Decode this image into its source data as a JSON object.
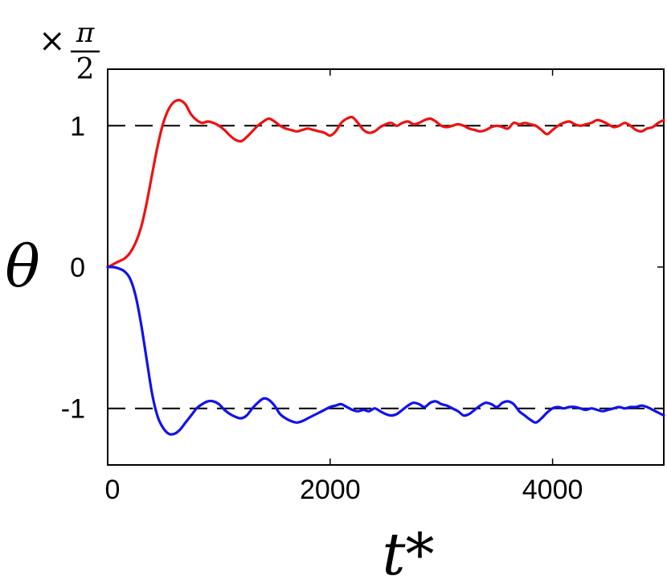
{
  "chart_data": {
    "type": "line",
    "title": "",
    "xlabel": "t*",
    "ylabel": "θ",
    "y_scale_factor": {
      "times": "×",
      "numerator": "π",
      "denominator": "2"
    },
    "xlim": [
      0,
      5000
    ],
    "ylim": [
      -1.4,
      1.4
    ],
    "xticks": [
      {
        "value": 0,
        "label": "0"
      },
      {
        "value": 2000,
        "label": "2000"
      },
      {
        "value": 4000,
        "label": "4000"
      }
    ],
    "yticks": [
      {
        "value": -1,
        "label": "-1"
      },
      {
        "value": 0,
        "label": "0"
      },
      {
        "value": 1,
        "label": "1"
      }
    ],
    "grid": false,
    "reference_lines": [
      {
        "y": 1,
        "style": "dashed",
        "color": "#000000"
      },
      {
        "y": -1,
        "style": "dashed",
        "color": "#000000"
      }
    ],
    "series": [
      {
        "color": "#ee1111",
        "x": [
          0,
          50,
          100,
          150,
          200,
          250,
          300,
          350,
          400,
          450,
          500,
          550,
          600,
          650,
          700,
          750,
          800,
          850,
          900,
          950,
          1000,
          1050,
          1100,
          1150,
          1200,
          1250,
          1300,
          1350,
          1400,
          1450,
          1500,
          1550,
          1600,
          1650,
          1700,
          1750,
          1800,
          1850,
          1900,
          1950,
          2000,
          2050,
          2100,
          2150,
          2200,
          2250,
          2300,
          2350,
          2400,
          2450,
          2500,
          2550,
          2600,
          2650,
          2700,
          2750,
          2800,
          2850,
          2900,
          2950,
          3000,
          3050,
          3100,
          3150,
          3200,
          3250,
          3300,
          3350,
          3400,
          3450,
          3500,
          3550,
          3600,
          3650,
          3700,
          3750,
          3800,
          3850,
          3900,
          3950,
          4000,
          4050,
          4100,
          4150,
          4200,
          4250,
          4300,
          4350,
          4400,
          4450,
          4500,
          4550,
          4600,
          4650,
          4700,
          4750,
          4800,
          4850,
          4900,
          4950,
          5000
        ],
        "y": [
          0,
          0.02,
          0.04,
          0.06,
          0.1,
          0.17,
          0.28,
          0.45,
          0.66,
          0.86,
          1.02,
          1.12,
          1.17,
          1.18,
          1.15,
          1.08,
          1.04,
          1.02,
          1.03,
          1.02,
          1.0,
          0.97,
          0.93,
          0.9,
          0.89,
          0.92,
          0.96,
          1.0,
          1.03,
          1.05,
          1.03,
          1.0,
          0.98,
          0.97,
          0.96,
          0.97,
          0.98,
          0.97,
          0.96,
          0.95,
          0.93,
          0.96,
          1.02,
          1.05,
          1.06,
          1.02,
          0.97,
          0.95,
          0.96,
          0.99,
          1.01,
          1.02,
          1.0,
          1.02,
          1.03,
          1.01,
          1.02,
          1.04,
          1.05,
          1.03,
          1.0,
          0.99,
          1.0,
          1.01,
          1.0,
          0.98,
          0.97,
          0.96,
          0.97,
          0.99,
          1.0,
          0.99,
          0.98,
          1.02,
          1.01,
          1.02,
          1.01,
          1.0,
          0.97,
          0.94,
          0.97,
          1.0,
          1.02,
          1.03,
          1.01,
          1.0,
          1.01,
          1.02,
          1.04,
          1.03,
          1.01,
          0.99,
          1.0,
          1.02,
          1.0,
          0.97,
          0.96,
          0.98,
          0.99,
          1.02,
          1.04
        ]
      },
      {
        "color": "#1111ee",
        "x": [
          0,
          50,
          100,
          150,
          200,
          250,
          300,
          350,
          400,
          450,
          500,
          550,
          600,
          650,
          700,
          750,
          800,
          850,
          900,
          950,
          1000,
          1050,
          1100,
          1150,
          1200,
          1250,
          1300,
          1350,
          1400,
          1450,
          1500,
          1550,
          1600,
          1650,
          1700,
          1750,
          1800,
          1850,
          1900,
          1950,
          2000,
          2050,
          2100,
          2150,
          2200,
          2250,
          2300,
          2350,
          2400,
          2450,
          2500,
          2550,
          2600,
          2650,
          2700,
          2750,
          2800,
          2850,
          2900,
          2950,
          3000,
          3050,
          3100,
          3150,
          3200,
          3250,
          3300,
          3350,
          3400,
          3450,
          3500,
          3550,
          3600,
          3650,
          3700,
          3750,
          3800,
          3850,
          3900,
          3950,
          4000,
          4050,
          4100,
          4150,
          4200,
          4250,
          4300,
          4350,
          4400,
          4450,
          4500,
          4550,
          4600,
          4650,
          4700,
          4750,
          4800,
          4850,
          4900,
          4950,
          5000
        ],
        "y": [
          0,
          0,
          -0.01,
          -0.03,
          -0.08,
          -0.2,
          -0.4,
          -0.65,
          -0.9,
          -1.06,
          -1.14,
          -1.18,
          -1.18,
          -1.15,
          -1.1,
          -1.05,
          -1.0,
          -0.97,
          -0.95,
          -0.95,
          -0.97,
          -1.01,
          -1.04,
          -1.06,
          -1.07,
          -1.05,
          -1.0,
          -0.96,
          -0.93,
          -0.94,
          -0.98,
          -1.04,
          -1.07,
          -1.09,
          -1.1,
          -1.09,
          -1.07,
          -1.05,
          -1.03,
          -1.01,
          -0.99,
          -0.98,
          -0.97,
          -0.99,
          -1.01,
          -1.02,
          -1.01,
          -1.02,
          -1.0,
          -1.02,
          -1.04,
          -1.05,
          -1.04,
          -1.01,
          -0.98,
          -0.96,
          -0.97,
          -0.99,
          -0.96,
          -0.95,
          -0.97,
          -0.98,
          -1.0,
          -1.02,
          -1.05,
          -1.04,
          -1.01,
          -0.98,
          -0.96,
          -0.97,
          -0.99,
          -0.96,
          -0.95,
          -0.97,
          -1.02,
          -1.05,
          -1.08,
          -1.1,
          -1.07,
          -1.03,
          -1.0,
          -0.99,
          -1.0,
          -0.99,
          -0.99,
          -1.0,
          -1.01,
          -1.0,
          -1.01,
          -1.02,
          -1.01,
          -1.0,
          -0.99,
          -1.0,
          -0.99,
          -0.99,
          -0.98,
          -0.99,
          -1.01,
          -1.03,
          -1.05
        ]
      }
    ]
  }
}
